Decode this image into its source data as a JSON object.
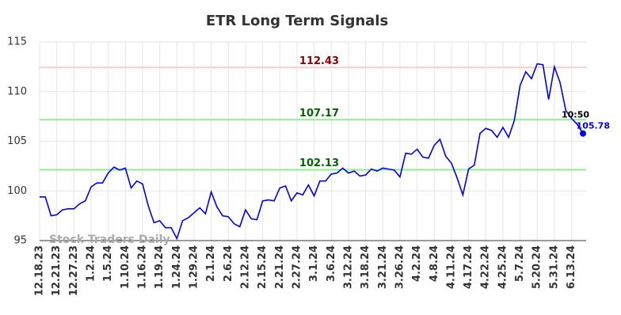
{
  "chart_data": {
    "type": "line",
    "title": "ETR Long Term Signals",
    "categories": [
      "12.18.23",
      null,
      null,
      "12.21.23",
      null,
      null,
      "12.27.23",
      null,
      null,
      "1.2.24",
      null,
      null,
      "1.5.24",
      null,
      null,
      "1.10.24",
      null,
      null,
      "1.16.24",
      null,
      null,
      "1.19.24",
      null,
      null,
      "1.24.24",
      null,
      null,
      "1.29.24",
      null,
      null,
      "2.1.24",
      null,
      null,
      "2.6.24",
      null,
      null,
      "2.12.24",
      null,
      null,
      "2.15.24",
      null,
      null,
      "2.21.24",
      null,
      null,
      "2.27.24",
      null,
      null,
      "3.1.24",
      null,
      null,
      "3.6.24",
      null,
      null,
      "3.12.24",
      null,
      null,
      "3.18.24",
      null,
      null,
      "3.21.24",
      null,
      null,
      "3.26.24",
      null,
      null,
      "4.2.24",
      null,
      null,
      "4.8.24",
      null,
      null,
      "4.11.24",
      null,
      null,
      "4.17.24",
      null,
      null,
      "4.22.24",
      null,
      null,
      "4.25.24",
      null,
      null,
      "5.7.24",
      null,
      null,
      "5.20.24",
      null,
      null,
      "5.31.24",
      null,
      null,
      "6.13.24",
      null,
      null
    ],
    "values": [
      99.4,
      99.4,
      97.5,
      97.6,
      98.1,
      98.2,
      98.2,
      98.7,
      99.0,
      100.4,
      100.8,
      100.8,
      101.8,
      102.4,
      102.1,
      102.3,
      100.3,
      101.0,
      100.7,
      98.5,
      96.8,
      97.0,
      96.3,
      96.3,
      95.2,
      97.0,
      97.3,
      97.8,
      98.3,
      97.7,
      99.9,
      98.4,
      97.5,
      97.4,
      96.7,
      96.4,
      98.1,
      97.2,
      97.1,
      99.0,
      99.1,
      99.0,
      100.3,
      100.5,
      99.0,
      99.8,
      99.6,
      100.6,
      99.5,
      101.0,
      101.0,
      101.7,
      101.8,
      102.3,
      101.8,
      102.0,
      101.5,
      101.6,
      102.2,
      102.0,
      102.3,
      102.2,
      102.1,
      101.4,
      103.8,
      103.7,
      104.2,
      103.4,
      103.3,
      104.6,
      105.2,
      103.5,
      102.8,
      101.3,
      99.6,
      102.2,
      102.6,
      105.8,
      106.3,
      106.1,
      105.4,
      106.4,
      105.4,
      107.1,
      110.6,
      112.0,
      111.3,
      112.8,
      112.7,
      109.2,
      112.5,
      110.9,
      108.1,
      107.3,
      106.7,
      105.78
    ],
    "color": "#0000ee",
    "last_time": "10:50",
    "hlines": [
      {
        "value": 112.43,
        "color": "#ffcccc",
        "label_color": "#8b0000"
      },
      {
        "value": 107.17,
        "color": "#90ee90",
        "label_color": "#006400"
      },
      {
        "value": 102.13,
        "color": "#90ee90",
        "label_color": "#006400"
      }
    ],
    "watermark": "Stock Traders Daily",
    "ylim": [
      95,
      115
    ],
    "yticks": [
      95,
      100,
      105,
      110,
      115
    ],
    "grid": true
  }
}
